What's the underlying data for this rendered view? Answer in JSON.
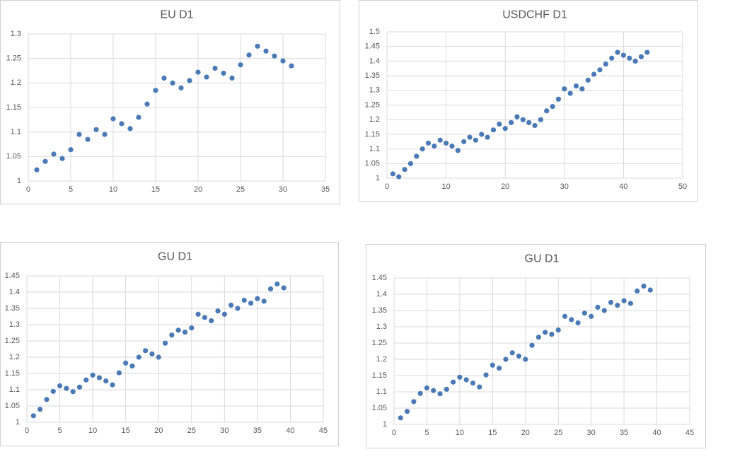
{
  "chart_data": [
    {
      "type": "scatter",
      "title": "EU D1",
      "color": "#4a7ab5",
      "grid": true,
      "x": [
        1,
        2,
        3,
        4,
        5,
        6,
        7,
        8,
        9,
        10,
        11,
        12,
        13,
        14,
        15,
        16,
        17,
        18,
        19,
        20,
        21,
        22,
        23,
        24,
        25,
        26,
        27,
        28,
        29,
        30,
        31
      ],
      "values": [
        1.023,
        1.04,
        1.055,
        1.046,
        1.064,
        1.095,
        1.085,
        1.105,
        1.095,
        1.127,
        1.117,
        1.107,
        1.13,
        1.157,
        1.185,
        1.21,
        1.2,
        1.19,
        1.205,
        1.222,
        1.212,
        1.23,
        1.22,
        1.21,
        1.237,
        1.257,
        1.275,
        1.265,
        1.255,
        1.245,
        1.235
      ],
      "xlim": [
        0,
        35
      ],
      "xticks": [
        0,
        5,
        10,
        15,
        20,
        25,
        30,
        35
      ],
      "ylim": [
        1,
        1.3
      ],
      "yticks": [
        1,
        1.05,
        1.1,
        1.15,
        1.2,
        1.25,
        1.3
      ]
    },
    {
      "type": "scatter",
      "title": "USDCHF D1",
      "color": "#4a7ab5",
      "grid": true,
      "x": [
        1,
        2,
        3,
        4,
        5,
        6,
        7,
        8,
        9,
        10,
        11,
        12,
        13,
        14,
        15,
        16,
        17,
        18,
        19,
        20,
        21,
        22,
        23,
        24,
        25,
        26,
        27,
        28,
        29,
        30,
        31,
        32,
        33,
        34,
        35,
        36,
        37,
        38,
        39,
        40,
        41,
        42,
        43,
        44
      ],
      "values": [
        1.015,
        1.005,
        1.03,
        1.05,
        1.075,
        1.1,
        1.12,
        1.11,
        1.13,
        1.12,
        1.11,
        1.095,
        1.125,
        1.14,
        1.13,
        1.15,
        1.14,
        1.165,
        1.185,
        1.17,
        1.19,
        1.21,
        1.2,
        1.19,
        1.18,
        1.2,
        1.23,
        1.245,
        1.27,
        1.305,
        1.29,
        1.315,
        1.305,
        1.335,
        1.355,
        1.37,
        1.39,
        1.41,
        1.43,
        1.42,
        1.41,
        1.4,
        1.415,
        1.43
      ],
      "xlim": [
        0,
        50
      ],
      "xticks": [
        0,
        10,
        20,
        30,
        40,
        50
      ],
      "ylim": [
        1,
        1.5
      ],
      "yticks": [
        1,
        1.05,
        1.1,
        1.15,
        1.2,
        1.25,
        1.3,
        1.35,
        1.4,
        1.45,
        1.5
      ]
    },
    {
      "type": "scatter",
      "title": "GU D1",
      "color": "#4a7ab5",
      "grid": true,
      "x": [
        1,
        2,
        3,
        4,
        5,
        6,
        7,
        8,
        9,
        10,
        11,
        12,
        13,
        14,
        15,
        16,
        17,
        18,
        19,
        20,
        21,
        22,
        23,
        24,
        25,
        26,
        27,
        28,
        29,
        30,
        31,
        32,
        33,
        34,
        35,
        36,
        37,
        38,
        39
      ],
      "values": [
        1.02,
        1.04,
        1.07,
        1.095,
        1.112,
        1.104,
        1.094,
        1.108,
        1.13,
        1.145,
        1.137,
        1.127,
        1.115,
        1.152,
        1.182,
        1.173,
        1.2,
        1.22,
        1.21,
        1.2,
        1.243,
        1.268,
        1.283,
        1.277,
        1.29,
        1.332,
        1.322,
        1.312,
        1.342,
        1.332,
        1.36,
        1.35,
        1.375,
        1.366,
        1.38,
        1.372,
        1.41,
        1.425,
        1.413
      ],
      "xlim": [
        0,
        45
      ],
      "xticks": [
        0,
        5,
        10,
        15,
        20,
        25,
        30,
        35,
        40,
        45
      ],
      "ylim": [
        1,
        1.45
      ],
      "yticks": [
        1,
        1.05,
        1.1,
        1.15,
        1.2,
        1.25,
        1.3,
        1.35,
        1.4,
        1.45
      ]
    },
    {
      "type": "scatter",
      "title": "GU D1",
      "color": "#4a7ab5",
      "grid": true,
      "x": [
        1,
        2,
        3,
        4,
        5,
        6,
        7,
        8,
        9,
        10,
        11,
        12,
        13,
        14,
        15,
        16,
        17,
        18,
        19,
        20,
        21,
        22,
        23,
        24,
        25,
        26,
        27,
        28,
        29,
        30,
        31,
        32,
        33,
        34,
        35,
        36,
        37,
        38,
        39
      ],
      "values": [
        1.02,
        1.04,
        1.07,
        1.095,
        1.112,
        1.104,
        1.094,
        1.108,
        1.13,
        1.145,
        1.137,
        1.127,
        1.115,
        1.152,
        1.182,
        1.173,
        1.2,
        1.22,
        1.21,
        1.2,
        1.243,
        1.268,
        1.283,
        1.277,
        1.29,
        1.332,
        1.322,
        1.312,
        1.342,
        1.332,
        1.36,
        1.35,
        1.375,
        1.366,
        1.38,
        1.372,
        1.41,
        1.425,
        1.413
      ],
      "xlim": [
        0,
        45
      ],
      "xticks": [
        0,
        5,
        10,
        15,
        20,
        25,
        30,
        35,
        40,
        45
      ],
      "ylim": [
        1,
        1.45
      ],
      "yticks": [
        1,
        1.05,
        1.1,
        1.15,
        1.2,
        1.25,
        1.3,
        1.35,
        1.4,
        1.45
      ]
    }
  ]
}
